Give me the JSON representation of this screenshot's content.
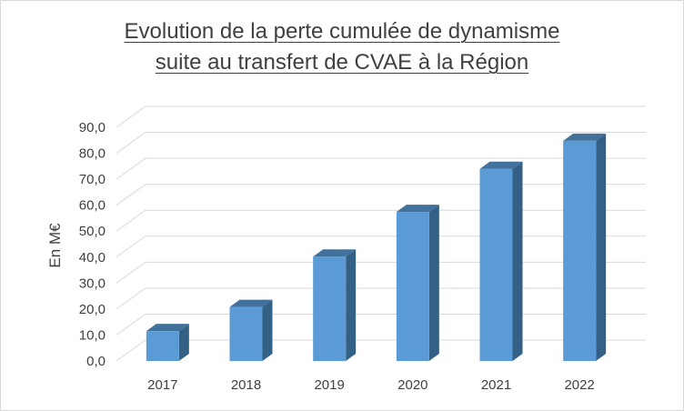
{
  "chart_data": {
    "type": "bar",
    "style": "3d-column",
    "title_line1": "Evolution de la perte cumulée de dynamisme",
    "title_line2": "suite au transfert de CVAE à la Région",
    "xlabel": "",
    "ylabel": "En M€",
    "categories": [
      "2017",
      "2018",
      "2019",
      "2020",
      "2021",
      "2022"
    ],
    "values": [
      11.5,
      20.8,
      40.2,
      57.4,
      74.0,
      84.8
    ],
    "ylim": [
      0,
      90
    ],
    "yticks": [
      "0,0",
      "10,0",
      "20,0",
      "30,0",
      "40,0",
      "50,0",
      "60,0",
      "70,0",
      "80,0",
      "90,0"
    ],
    "grid": true,
    "legend": "none",
    "colors": {
      "bar_front": "#5b9bd5",
      "bar_top": "#41719c",
      "bar_side": "#356086",
      "grid": "#d9d9d9",
      "text": "#404040"
    }
  }
}
